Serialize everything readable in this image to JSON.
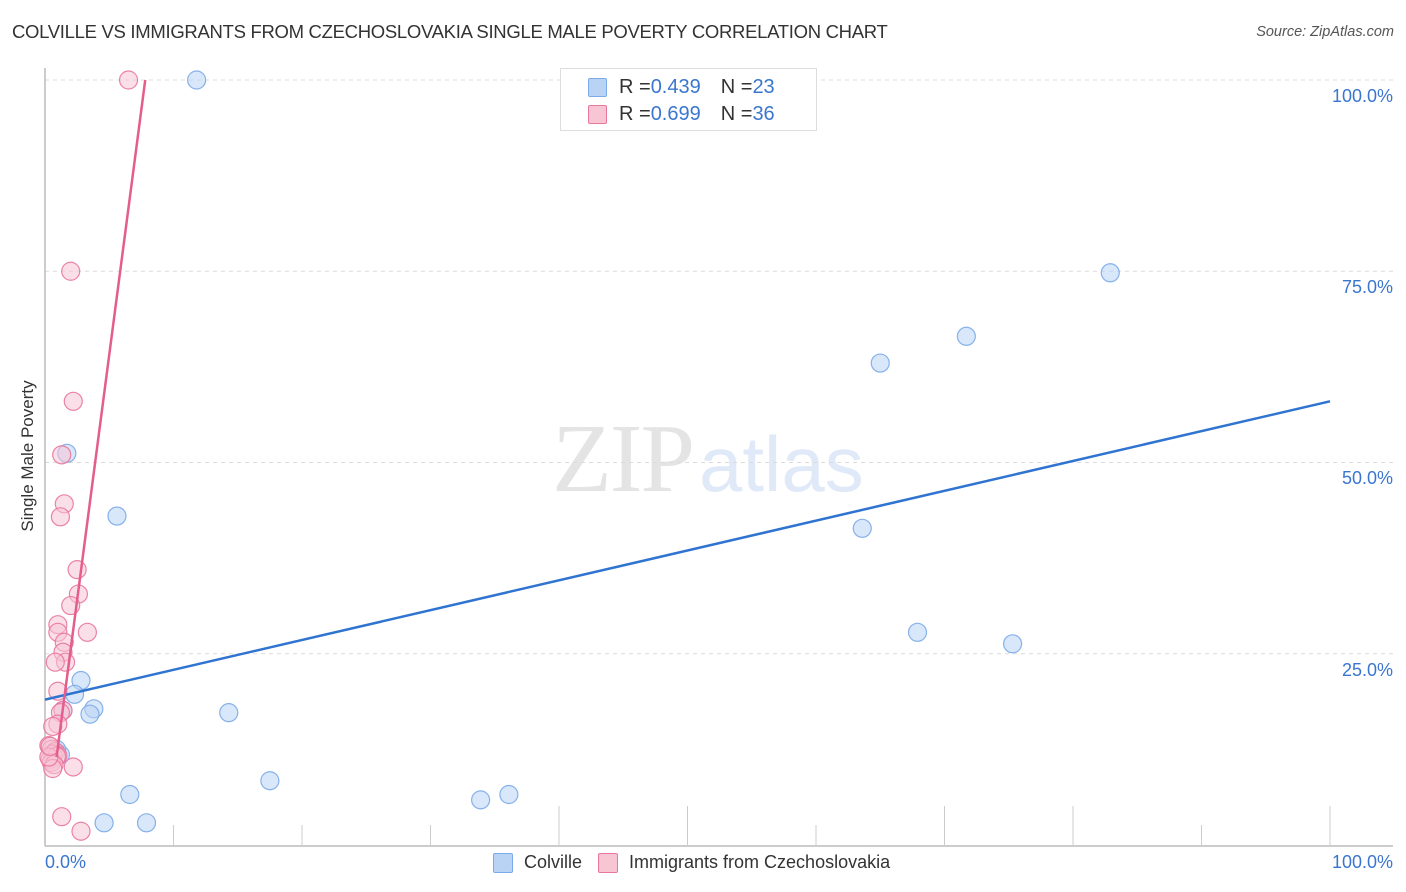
{
  "header": {
    "title": "COLVILLE VS IMMIGRANTS FROM CZECHOSLOVAKIA SINGLE MALE POVERTY CORRELATION CHART",
    "source": "Source: ZipAtlas.com"
  },
  "watermark": {
    "zip": "ZIP",
    "atlas": "atlas"
  },
  "legend": {
    "series": [
      {
        "name": "Colville",
        "r_label": "R = ",
        "r_value": "0.439",
        "n_label": "N = ",
        "n_value": "23",
        "color": "#7aaae8",
        "fill": "#b9d3f5"
      },
      {
        "name": "Immigrants from Czechoslovakia",
        "r_label": "R = ",
        "r_value": "0.699",
        "n_label": "N = ",
        "n_value": "36",
        "color": "#e8779c",
        "fill": "#f8c5d5"
      }
    ]
  },
  "axes": {
    "y_label": "Single Male Poverty",
    "y_ticks": [
      "100.0%",
      "75.0%",
      "50.0%",
      "25.0%"
    ],
    "x_ticks": [
      "0.0%",
      "100.0%"
    ]
  },
  "colors": {
    "blue_line": "#2f74d0",
    "pink_line": "#e45d8c",
    "tick_text": "#3a76d0",
    "grid": "#dcdcdc"
  },
  "chart_data": {
    "type": "scatter",
    "title": "COLVILLE VS IMMIGRANTS FROM CZECHOSLOVAKIA SINGLE MALE POVERTY CORRELATION CHART",
    "xlabel": "",
    "ylabel": "Single Male Poverty",
    "xlim": [
      0,
      100
    ],
    "ylim": [
      0,
      100
    ],
    "x_tick_labels": [
      "0.0%",
      "100.0%"
    ],
    "y_tick_labels": [
      "25.0%",
      "50.0%",
      "75.0%",
      "100.0%"
    ],
    "grid": true,
    "legend_position": "top-center",
    "series": [
      {
        "name": "Colville",
        "R": 0.439,
        "N": 23,
        "points": [
          [
            11.8,
            100.0
          ],
          [
            1.7,
            51.2
          ],
          [
            5.6,
            43.0
          ],
          [
            2.8,
            21.5
          ],
          [
            2.3,
            19.7
          ],
          [
            3.8,
            17.8
          ],
          [
            3.5,
            17.1
          ],
          [
            1.4,
            17.6
          ],
          [
            14.3,
            17.3
          ],
          [
            17.5,
            8.4
          ],
          [
            6.6,
            6.6
          ],
          [
            7.9,
            2.9
          ],
          [
            4.6,
            2.9
          ],
          [
            33.9,
            5.9
          ],
          [
            36.1,
            6.6
          ],
          [
            82.9,
            74.8
          ],
          [
            71.7,
            66.5
          ],
          [
            65.0,
            63.0
          ],
          [
            63.6,
            41.4
          ],
          [
            67.9,
            27.8
          ],
          [
            75.3,
            26.3
          ],
          [
            1.2,
            11.8
          ],
          [
            0.9,
            12.5
          ]
        ],
        "trendline": {
          "x": [
            0,
            100
          ],
          "y": [
            19.0,
            58.0
          ]
        }
      },
      {
        "name": "Immigrants from Czechoslovakia",
        "R": 0.699,
        "N": 36,
        "points": [
          [
            6.5,
            100.0
          ],
          [
            2.0,
            75.0
          ],
          [
            2.2,
            58.0
          ],
          [
            1.3,
            51.0
          ],
          [
            1.5,
            44.6
          ],
          [
            1.2,
            42.9
          ],
          [
            2.5,
            36.0
          ],
          [
            2.6,
            32.8
          ],
          [
            2.0,
            31.3
          ],
          [
            1.0,
            28.8
          ],
          [
            1.0,
            27.8
          ],
          [
            3.3,
            27.8
          ],
          [
            1.5,
            26.5
          ],
          [
            1.4,
            25.2
          ],
          [
            1.6,
            23.9
          ],
          [
            0.8,
            23.9
          ],
          [
            1.0,
            20.1
          ],
          [
            1.4,
            17.6
          ],
          [
            1.2,
            17.3
          ],
          [
            1.0,
            15.8
          ],
          [
            0.6,
            15.5
          ],
          [
            0.3,
            13.0
          ],
          [
            0.5,
            12.5
          ],
          [
            0.8,
            12.2
          ],
          [
            0.6,
            11.9
          ],
          [
            1.0,
            11.7
          ],
          [
            0.4,
            11.2
          ],
          [
            0.9,
            11.6
          ],
          [
            0.5,
            10.8
          ],
          [
            0.7,
            10.5
          ],
          [
            0.6,
            10.0
          ],
          [
            2.2,
            10.2
          ],
          [
            1.3,
            3.7
          ],
          [
            2.8,
            1.8
          ],
          [
            0.3,
            11.5
          ],
          [
            0.4,
            12.9
          ]
        ],
        "trendline": {
          "x": [
            0.9,
            7.8
          ],
          "y": [
            11.5,
            100.0
          ]
        }
      }
    ]
  }
}
